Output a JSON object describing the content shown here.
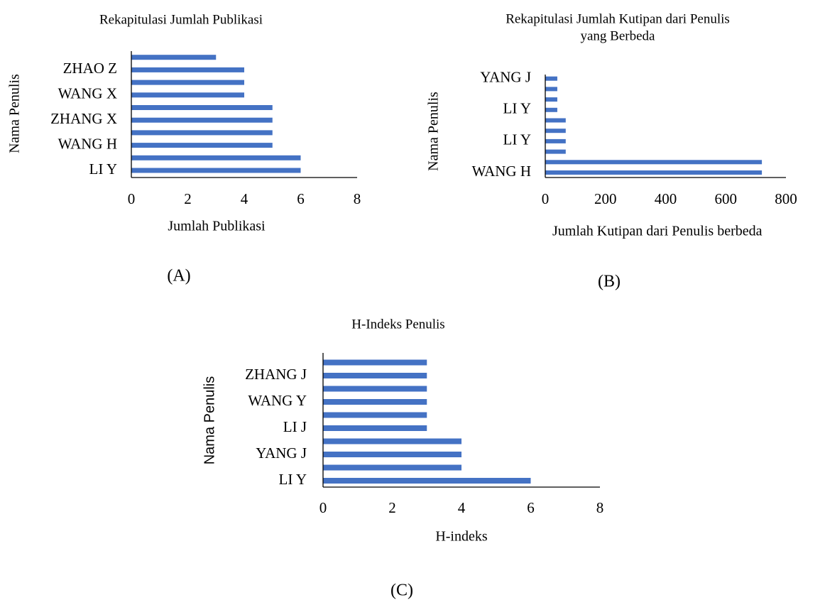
{
  "chart_data": [
    {
      "type": "barh",
      "title": [
        "Rekapitulasi Jumlah Publikasi"
      ],
      "label": "(A)",
      "x_label": "Jumlah Publikasi",
      "y_label": "Nama Penulis",
      "categories": [
        "LI Y",
        null,
        "WANG H",
        null,
        "ZHANG X",
        null,
        "WANG X",
        null,
        "ZHAO Z",
        null
      ],
      "values": [
        6,
        6,
        5,
        5,
        5,
        5,
        4,
        4,
        4,
        3
      ],
      "color": "#4472c4",
      "xlim": [
        0,
        8
      ],
      "xticks": [
        0,
        2,
        4,
        6,
        8
      ],
      "grid": false
    },
    {
      "type": "barh",
      "title": [
        "Rekapitulasi Jumlah Kutipan dari Penulis",
        "yang Berbeda"
      ],
      "label": "(B)",
      "x_label": "Jumlah  Kutipan dari Penulis berbeda",
      "y_label": "Nama Penulis",
      "categories": [
        "WANG H",
        null,
        null,
        "LI Y",
        null,
        null,
        "LI Y",
        null,
        null,
        "YANG J"
      ],
      "values": [
        720,
        720,
        68,
        68,
        68,
        68,
        40,
        40,
        40,
        40
      ],
      "color": "#4472c4",
      "xlim": [
        0,
        800
      ],
      "xticks": [
        0,
        200,
        400,
        600,
        800
      ],
      "grid": false
    },
    {
      "type": "barh",
      "title": [
        "H-Indeks Penulis"
      ],
      "label": "(C)",
      "x_label": "H-indeks",
      "y_label": "Nama Penulis",
      "categories": [
        "LI Y",
        null,
        "YANG J",
        null,
        "LI J",
        null,
        "WANG Y",
        null,
        "ZHANG J",
        null
      ],
      "values": [
        6,
        4,
        4,
        4,
        3,
        3,
        3,
        3,
        3,
        3
      ],
      "color": "#4472c4",
      "xlim": [
        0,
        8
      ],
      "xticks": [
        0,
        2,
        4,
        6,
        8
      ],
      "grid": false
    }
  ]
}
